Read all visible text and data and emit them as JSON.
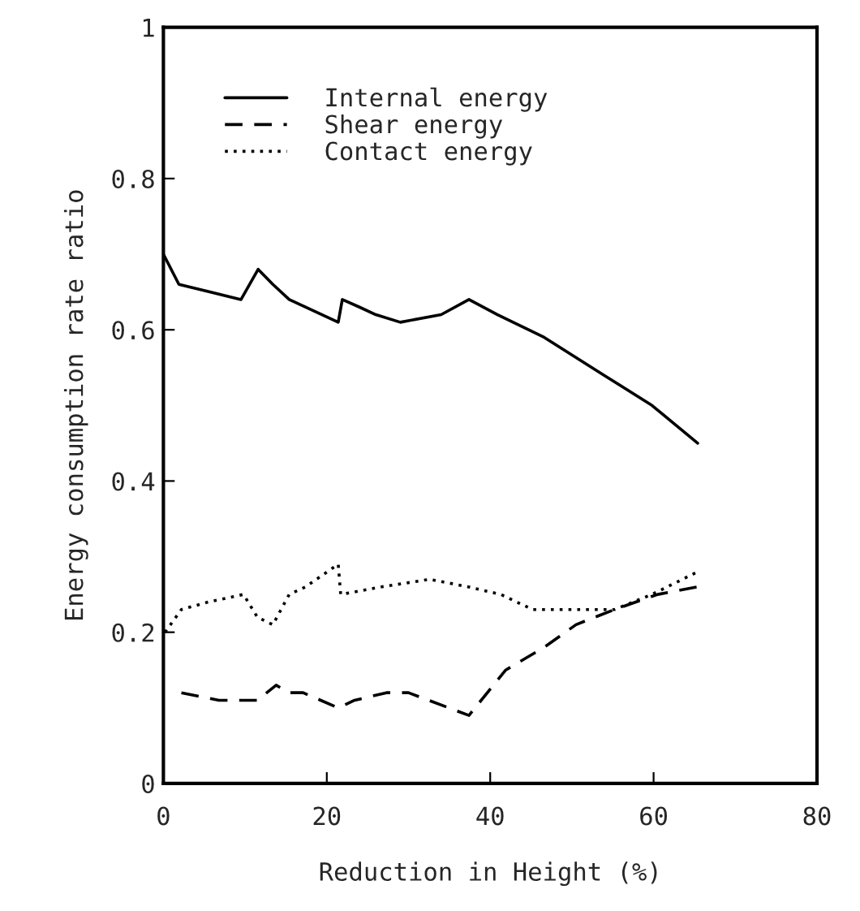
{
  "chart_data": {
    "type": "line",
    "xlabel": "Reduction in Height (%)",
    "ylabel": "Energy consumption rate ratio",
    "xlim": [
      0,
      80
    ],
    "xticks": [
      0,
      20,
      40,
      60,
      80
    ],
    "ylim": [
      0,
      1
    ],
    "yticks": [
      0,
      0.2,
      0.4,
      0.6,
      0.8,
      1
    ],
    "grid": false,
    "legend": "top left",
    "series": [
      {
        "name": "Internal energy",
        "color": "#000000",
        "line_style": "solid",
        "x": [
          0,
          1.9,
          9.5,
          11.6,
          13.4,
          15.4,
          21.4,
          21.9,
          24,
          26,
          29,
          34,
          37.4,
          40.9,
          46.6,
          53.9,
          59.8,
          65.4
        ],
        "values": [
          0.7,
          0.66,
          0.64,
          0.68,
          0.66,
          0.64,
          0.61,
          0.64,
          0.63,
          0.62,
          0.61,
          0.62,
          0.64,
          0.62,
          0.59,
          0.54,
          0.5,
          0.45
        ]
      },
      {
        "name": "Shear energy",
        "color": "#000000",
        "line_style": "dashed",
        "x": [
          2.2,
          6.8,
          11.5,
          13.8,
          15.4,
          17.1,
          21.4,
          23.4,
          27.3,
          30,
          37.4,
          41.9,
          46.6,
          50.5,
          55.2,
          60.5,
          65.4
        ],
        "values": [
          0.12,
          0.11,
          0.11,
          0.13,
          0.12,
          0.12,
          0.1,
          0.11,
          0.12,
          0.12,
          0.09,
          0.15,
          0.18,
          0.21,
          0.23,
          0.25,
          0.26
        ]
      },
      {
        "name": "Contact energy",
        "color": "#000000",
        "line_style": "dotted",
        "x": [
          0.2,
          2.2,
          5.5,
          9.8,
          11.5,
          13.4,
          15.4,
          17.4,
          21.4,
          21.7,
          26.7,
          32.6,
          37.3,
          41.3,
          45.2,
          49.2,
          55.2,
          59.8,
          65.4
        ],
        "values": [
          0.2,
          0.23,
          0.24,
          0.25,
          0.22,
          0.21,
          0.25,
          0.26,
          0.29,
          0.25,
          0.26,
          0.27,
          0.26,
          0.25,
          0.23,
          0.23,
          0.23,
          0.25,
          0.28
        ]
      }
    ]
  }
}
